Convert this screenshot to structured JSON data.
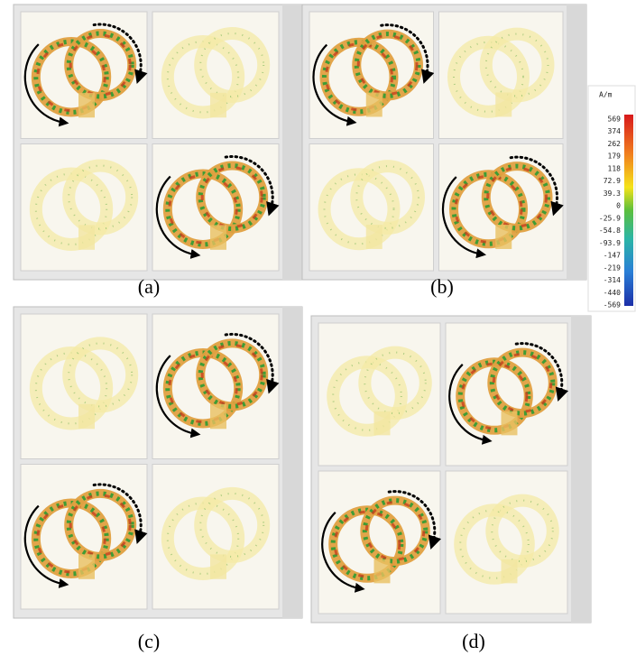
{
  "panels": [
    {
      "label": "(a)"
    },
    {
      "label": "(b)"
    },
    {
      "label": "(c)"
    },
    {
      "label": "(d)"
    }
  ],
  "legend": {
    "unit": "A/m",
    "ticks": [
      "569",
      "374",
      "262",
      "179",
      "118",
      "72.9",
      "39.3",
      "0",
      "-25.9",
      "-54.8",
      "-93.9",
      "-147",
      "-219",
      "-314",
      "-440",
      "-569"
    ]
  }
}
